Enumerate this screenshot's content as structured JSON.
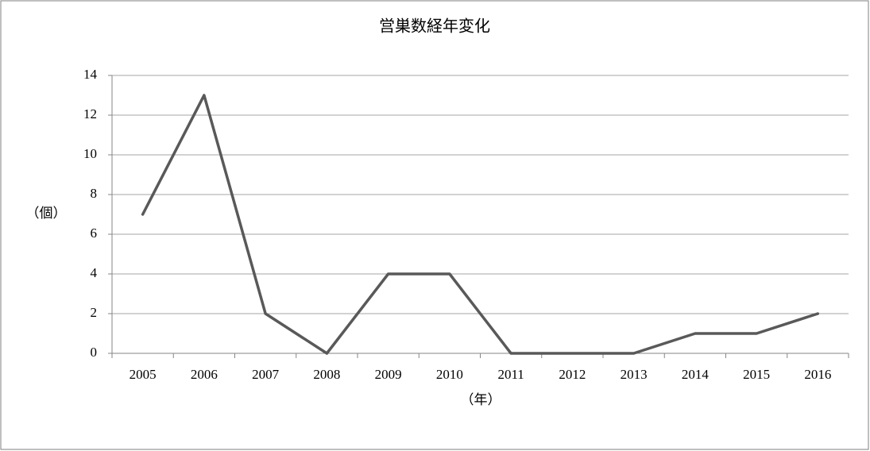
{
  "chart_data": {
    "type": "line",
    "title": "営巣数経年変化",
    "x_label": "（年）",
    "y_label": "（個）",
    "categories": [
      "2005",
      "2006",
      "2007",
      "2008",
      "2009",
      "2010",
      "2011",
      "2012",
      "2013",
      "2014",
      "2015",
      "2016"
    ],
    "values": [
      7,
      13,
      2,
      0,
      4,
      4,
      0,
      0,
      0,
      1,
      1,
      2
    ],
    "color": "#595959",
    "ylim": [
      0,
      14
    ],
    "yticks": [
      0,
      2,
      4,
      6,
      8,
      10,
      12,
      14
    ],
    "grid": true
  }
}
